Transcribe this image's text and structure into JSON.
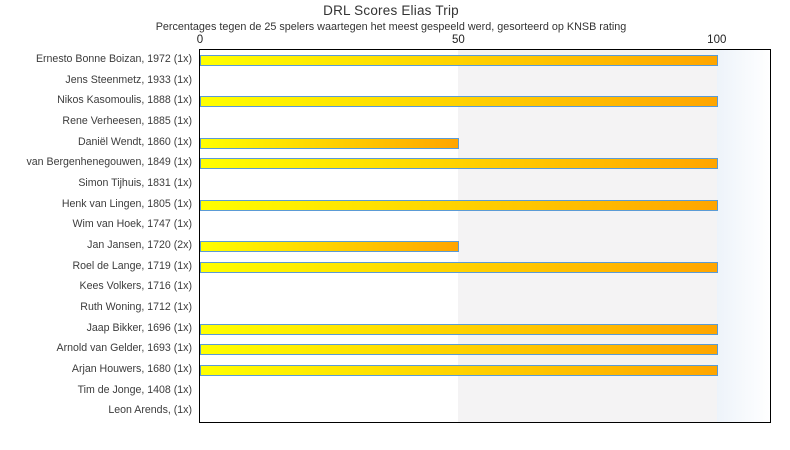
{
  "chart_data": {
    "type": "bar",
    "orientation": "horizontal",
    "title": "DRL Scores Elias Trip",
    "subtitle": "Percentages tegen de 25 spelers waartegen het meest gespeeld werd, gesorteerd op KNSB rating",
    "xlabel": "",
    "ylabel": "",
    "xlim": [
      0,
      110.3
    ],
    "xticks": [
      0,
      50,
      100
    ],
    "grid": false,
    "legend": false,
    "categories": [
      "Ernesto Bonne Boizan, 1972 (1x)",
      "Jens Steenmetz, 1933 (1x)",
      "Nikos Kasomoulis, 1888 (1x)",
      "Rene Verheesen, 1885 (1x)",
      "Daniël Wendt, 1860 (1x)",
      "van Bergenhenegouwen, 1849 (1x)",
      "Simon Tijhuis, 1831 (1x)",
      "Henk van Lingen, 1805 (1x)",
      "Wim van Hoek, 1747 (1x)",
      "Jan Jansen, 1720 (2x)",
      "Roel de Lange, 1719 (1x)",
      "Kees Volkers, 1716 (1x)",
      "Ruth Woning, 1712 (1x)",
      "Jaap Bikker, 1696 (1x)",
      "Arnold van Gelder, 1693 (1x)",
      "Arjan Houwers, 1680 (1x)",
      "Tim de Jonge, 1408 (1x)",
      "Leon Arends,  (1x)"
    ],
    "values": [
      100,
      0,
      100,
      0,
      50,
      100,
      0,
      100,
      0,
      50,
      100,
      0,
      0,
      100,
      100,
      100,
      0,
      0
    ],
    "bands": [
      {
        "from": 0,
        "to": 50,
        "color": "#ffffff"
      },
      {
        "from": 50,
        "to": 100,
        "color": "#f4f3f4"
      },
      {
        "from": 100,
        "to": 110.3,
        "gradient": [
          "#edf3fa",
          "#ffffff"
        ]
      }
    ],
    "colors": {
      "bar_gradient_start": "#ffff00",
      "bar_gradient_end": "#ffa500",
      "bar_border": "#5b9bd5",
      "plot_border": "#000000",
      "text": "#3c3c3c"
    }
  }
}
